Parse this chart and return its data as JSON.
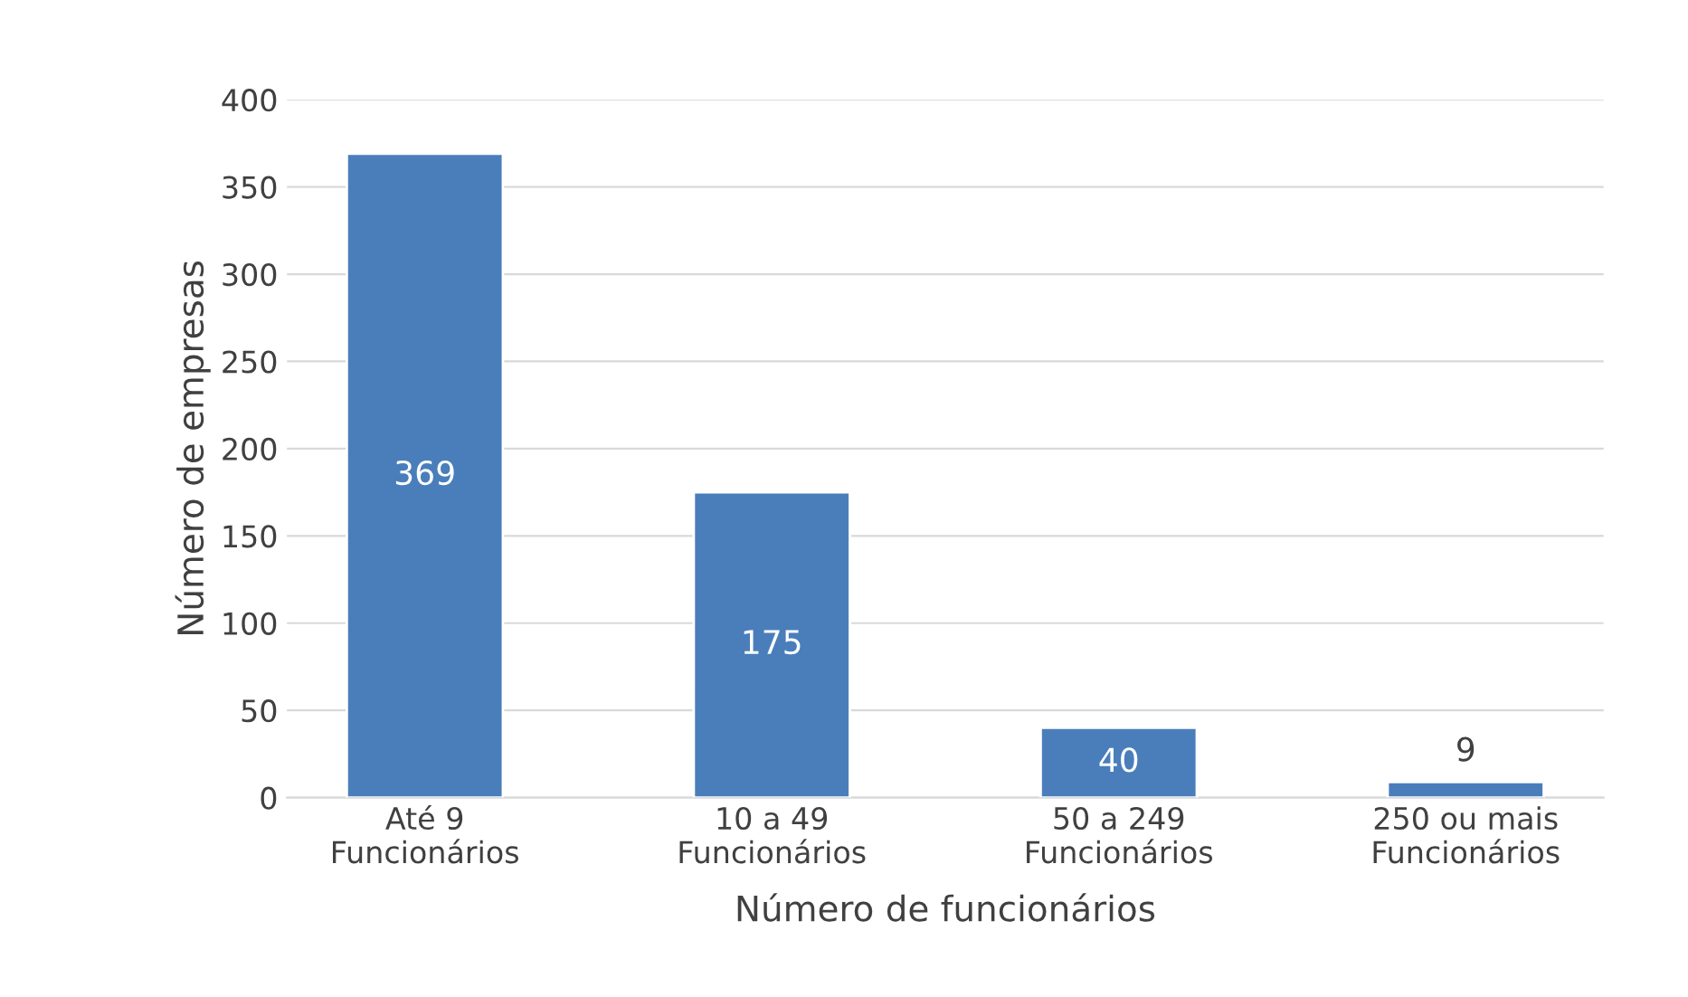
{
  "chart_data": {
    "type": "bar",
    "xlabel": "Número de funcionários",
    "ylabel": "Número de empresas",
    "categories": [
      "Até 9\nFuncionários",
      "10 a 49\nFuncionários",
      "50 a 249\nFuncionários",
      "250 ou mais\nFuncionários"
    ],
    "values": [
      369,
      175,
      40,
      9
    ],
    "color": "#4a7ebb",
    "ylim": [
      0,
      400
    ],
    "yticks": [
      0,
      50,
      100,
      150,
      200,
      250,
      300,
      350,
      400
    ],
    "grid": "y",
    "data_labels": true
  }
}
